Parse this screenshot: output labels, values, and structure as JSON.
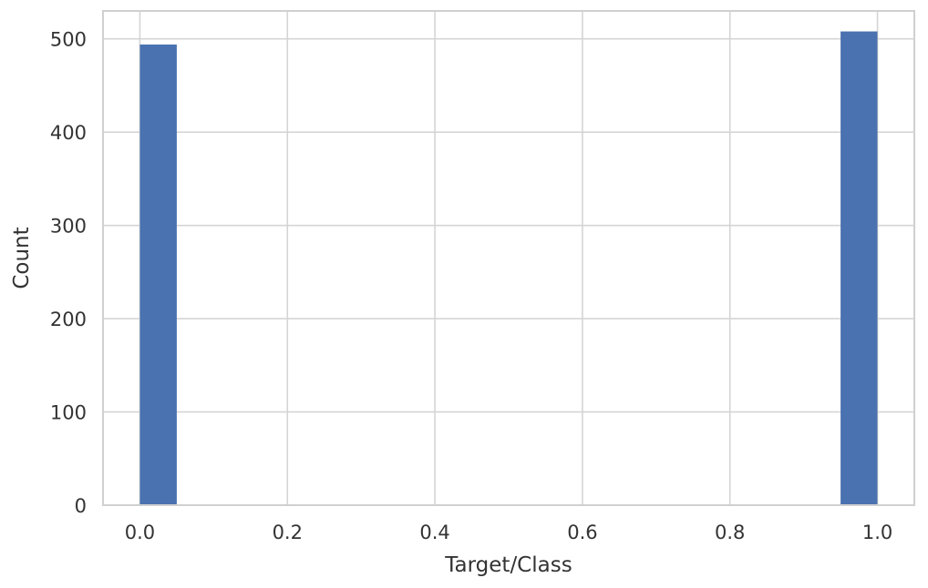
{
  "chart_data": {
    "type": "bar",
    "title": "",
    "xlabel": "Target/Class",
    "ylabel": "Count",
    "xlim": [
      -0.05,
      1.05
    ],
    "ylim": [
      0,
      530
    ],
    "x_ticks": [
      "0.0",
      "0.2",
      "0.4",
      "0.6",
      "0.8",
      "1.0"
    ],
    "y_ticks": [
      "0",
      "100",
      "200",
      "300",
      "400",
      "500"
    ],
    "grid": true,
    "bins": [
      {
        "x0": 0.0,
        "x1": 0.05,
        "value": 494
      },
      {
        "x0": 0.95,
        "x1": 1.0,
        "value": 508
      }
    ],
    "bar_color": "#4a72b0"
  }
}
